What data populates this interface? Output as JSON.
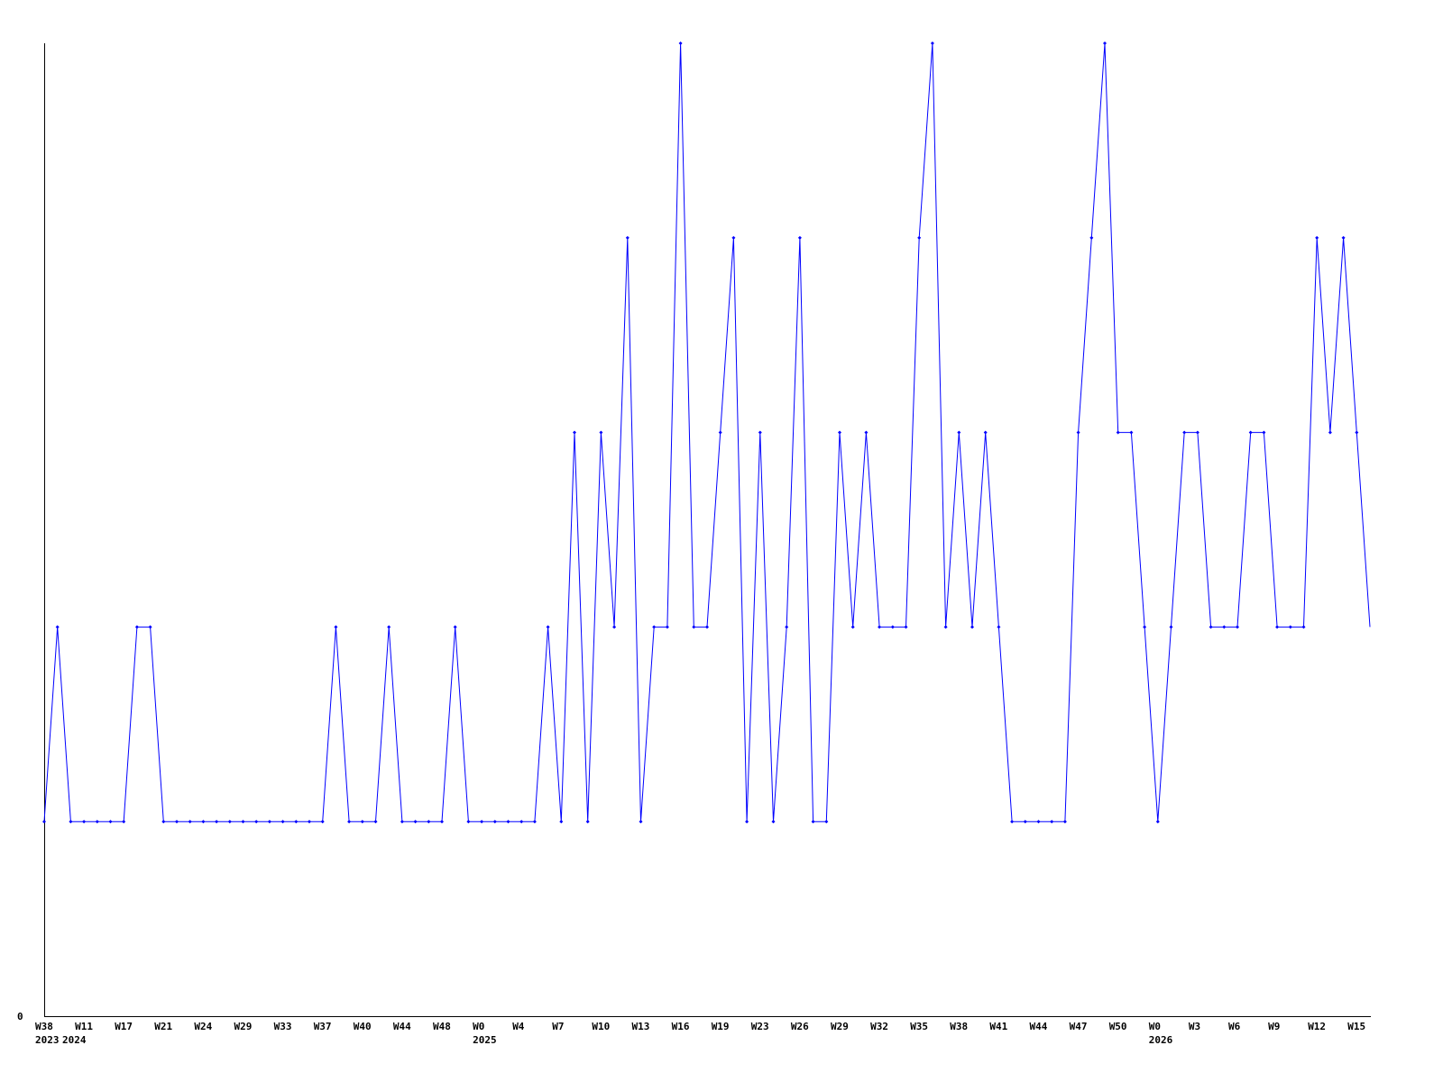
{
  "chart_data": {
    "type": "line",
    "title": "",
    "xlabel": "",
    "ylabel": "",
    "ylim": [
      0,
      5
    ],
    "y_tick_labels": [
      "0"
    ],
    "grid": false,
    "line_color": "#0000ff",
    "axis_color": "#000000",
    "x_tick_labels": [
      {
        "index": 0,
        "label": "W38"
      },
      {
        "index": 3,
        "label": "W11"
      },
      {
        "index": 6,
        "label": "W17"
      },
      {
        "index": 9,
        "label": "W21"
      },
      {
        "index": 12,
        "label": "W24"
      },
      {
        "index": 15,
        "label": "W29"
      },
      {
        "index": 18,
        "label": "W33"
      },
      {
        "index": 21,
        "label": "W37"
      },
      {
        "index": 24,
        "label": "W40"
      },
      {
        "index": 27,
        "label": "W44"
      },
      {
        "index": 30,
        "label": "W48"
      },
      {
        "index": 33,
        "label": "W0"
      },
      {
        "index": 36,
        "label": "W4"
      },
      {
        "index": 39,
        "label": "W7"
      },
      {
        "index": 42,
        "label": "W10"
      },
      {
        "index": 45,
        "label": "W13"
      },
      {
        "index": 48,
        "label": "W16"
      },
      {
        "index": 51,
        "label": "W19"
      },
      {
        "index": 54,
        "label": "W23"
      },
      {
        "index": 57,
        "label": "W26"
      },
      {
        "index": 60,
        "label": "W29"
      },
      {
        "index": 63,
        "label": "W32"
      },
      {
        "index": 66,
        "label": "W35"
      },
      {
        "index": 69,
        "label": "W38"
      },
      {
        "index": 72,
        "label": "W41"
      },
      {
        "index": 75,
        "label": "W44"
      },
      {
        "index": 78,
        "label": "W47"
      },
      {
        "index": 81,
        "label": "W50"
      },
      {
        "index": 84,
        "label": "W0"
      },
      {
        "index": 87,
        "label": "W3"
      },
      {
        "index": 90,
        "label": "W6"
      },
      {
        "index": 93,
        "label": "W9"
      },
      {
        "index": 96,
        "label": "W12"
      },
      {
        "index": 99,
        "label": "W15"
      }
    ],
    "year_labels": [
      {
        "index": 0,
        "label": "2023",
        "offset": 0
      },
      {
        "index": 0,
        "label": "2024",
        "offset": 1
      },
      {
        "index": 33,
        "label": "2025",
        "offset": 0
      },
      {
        "index": 84,
        "label": "2026",
        "offset": 0
      }
    ],
    "values": [
      1,
      2,
      1,
      1,
      1,
      1,
      1,
      2,
      2,
      1,
      1,
      1,
      1,
      1,
      1,
      1,
      1,
      1,
      1,
      1,
      1,
      1,
      2,
      1,
      1,
      1,
      2,
      1,
      1,
      1,
      1,
      2,
      1,
      1,
      1,
      1,
      1,
      1,
      2,
      1,
      3,
      1,
      3,
      2,
      4,
      1,
      2,
      2,
      5,
      2,
      2,
      3,
      4,
      1,
      3,
      1,
      2,
      4,
      1,
      1,
      3,
      2,
      3,
      2,
      2,
      2,
      4,
      5,
      2,
      3,
      2,
      3,
      2,
      1,
      1,
      1,
      1,
      1,
      3,
      4,
      5,
      3,
      3,
      2,
      1,
      2,
      3,
      3,
      2,
      2,
      2,
      3,
      3,
      2,
      2,
      2,
      4,
      3,
      4,
      3,
      2
    ]
  }
}
